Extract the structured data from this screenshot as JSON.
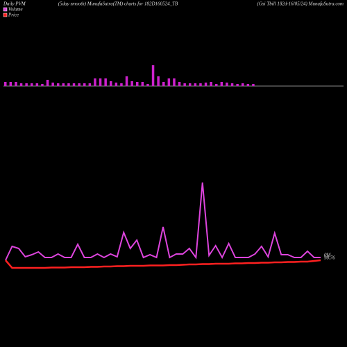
{
  "chart_data": [
    {
      "type": "bar",
      "title": "Daily PVM",
      "subtitle": "(5day smooth) MunafaSutra(TM) charts for 182D160524_TB",
      "source": "(Gsi  Tbill 182d-16/05/24) MunafaSutra.com",
      "color": "#cc22cc",
      "baseline_color": "#888888",
      "ylim": [
        0,
        40
      ],
      "values": [
        6,
        6,
        6,
        4,
        4,
        4,
        4,
        3,
        9,
        5,
        4,
        4,
        4,
        4,
        4,
        4,
        4,
        11,
        11,
        11,
        7,
        5,
        4,
        14,
        7,
        6,
        6,
        3,
        30,
        14,
        6,
        11,
        11,
        6,
        4,
        4,
        4,
        4,
        5,
        6,
        3,
        6,
        5,
        4,
        3,
        4,
        3,
        3
      ]
    },
    {
      "type": "line",
      "ylim": [
        0,
        200
      ],
      "xlim": [
        0,
        48
      ],
      "annotations": [
        "0M",
        "98.76"
      ],
      "series": [
        {
          "name": "Volume",
          "color": "#dd44dd",
          "values": [
            25,
            45,
            42,
            30,
            33,
            37,
            29,
            29,
            34,
            29,
            29,
            48,
            29,
            29,
            34,
            29,
            34,
            30,
            65,
            42,
            54,
            29,
            33,
            29,
            73,
            29,
            34,
            34,
            42,
            29,
            137,
            32,
            46,
            29,
            49,
            29,
            29,
            29,
            34,
            45,
            30,
            64,
            33,
            33,
            29,
            29,
            38,
            29,
            29
          ]
        },
        {
          "name": "Price",
          "color": "#ff2020",
          "values": [
            25,
            14,
            14,
            14,
            14,
            14,
            14,
            14.5,
            14.5,
            14.5,
            15,
            15,
            15,
            15.5,
            15.5,
            16,
            16,
            16.5,
            16.5,
            17,
            17,
            17,
            17.5,
            17.5,
            17.5,
            18,
            18,
            18.5,
            19,
            19,
            19.5,
            19.5,
            20,
            20,
            20,
            20.5,
            20.5,
            21,
            21,
            21.5,
            21.5,
            22,
            22,
            22.5,
            22.5,
            23,
            23,
            24,
            25
          ]
        }
      ]
    }
  ]
}
